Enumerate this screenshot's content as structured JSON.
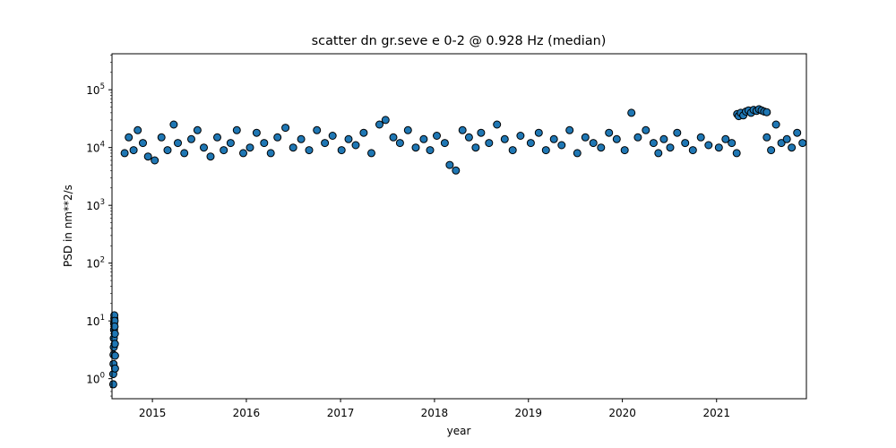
{
  "chart_data": {
    "type": "scatter",
    "title": "scatter dn gr.seve e 0-2 @ 0.928 Hz (median)",
    "xlabel": "year",
    "ylabel": "PSD in nm**2/s",
    "x_scale": "date",
    "y_scale": "log",
    "xlim": [
      "2014-07-28",
      "2021-12-16"
    ],
    "ylim": [
      0.45,
      420000
    ],
    "x_ticks": [
      "2015",
      "2016",
      "2017",
      "2018",
      "2019",
      "2020",
      "2021"
    ],
    "y_ticks": [
      1,
      10,
      100,
      1000,
      10000,
      100000
    ],
    "y_tick_labels": [
      "10^0",
      "10^1",
      "10^2",
      "10^3",
      "10^4",
      "10^5"
    ],
    "grid": false,
    "marker_color": "#1f77b4",
    "marker_edge_color": "#000000",
    "series": [
      {
        "x": [
          "2014-08-02",
          "2014-08-02",
          "2014-08-03",
          "2014-08-03",
          "2014-08-04",
          "2014-08-04",
          "2014-08-05",
          "2014-08-05",
          "2014-08-06",
          "2014-08-06",
          "2014-08-07",
          "2014-08-07",
          "2014-08-08",
          "2014-08-08",
          "2014-08-09",
          "2014-08-09",
          "2014-09-15",
          "2014-10-01",
          "2014-10-20",
          "2014-11-05",
          "2014-11-25",
          "2014-12-15",
          "2015-01-10",
          "2015-02-05",
          "2015-03-01",
          "2015-03-25",
          "2015-04-10",
          "2015-05-05",
          "2015-06-01",
          "2015-06-25",
          "2015-07-20",
          "2015-08-15",
          "2015-09-10",
          "2015-10-05",
          "2015-11-01",
          "2015-11-25",
          "2015-12-20",
          "2016-01-15",
          "2016-02-10",
          "2016-03-10",
          "2016-04-05",
          "2016-05-01",
          "2016-06-01",
          "2016-07-01",
          "2016-08-01",
          "2016-09-01",
          "2016-10-01",
          "2016-11-01",
          "2016-12-01",
          "2017-01-05",
          "2017-02-01",
          "2017-03-01",
          "2017-04-01",
          "2017-05-01",
          "2017-06-01",
          "2017-06-25",
          "2017-07-25",
          "2017-08-20",
          "2017-09-20",
          "2017-10-20",
          "2017-11-20",
          "2017-12-15",
          "2018-01-10",
          "2018-02-10",
          "2018-03-01",
          "2018-03-25",
          "2018-04-20",
          "2018-05-15",
          "2018-06-10",
          "2018-07-01",
          "2018-08-01",
          "2018-09-01",
          "2018-10-01",
          "2018-11-01",
          "2018-12-01",
          "2019-01-10",
          "2019-02-10",
          "2019-03-10",
          "2019-04-10",
          "2019-05-10",
          "2019-06-10",
          "2019-07-10",
          "2019-08-10",
          "2019-09-10",
          "2019-10-10",
          "2019-11-10",
          "2019-12-10",
          "2020-01-10",
          "2020-02-05",
          "2020-03-01",
          "2020-04-01",
          "2020-05-01",
          "2020-05-20",
          "2020-06-10",
          "2020-07-05",
          "2020-08-01",
          "2020-09-01",
          "2020-10-01",
          "2020-11-01",
          "2020-12-01",
          "2021-01-10",
          "2021-02-05",
          "2021-03-01",
          "2021-03-20",
          "2021-03-22",
          "2021-03-28",
          "2021-04-05",
          "2021-04-15",
          "2021-04-25",
          "2021-05-05",
          "2021-05-15",
          "2021-05-25",
          "2021-06-05",
          "2021-06-15",
          "2021-06-25",
          "2021-07-05",
          "2021-07-15",
          "2021-07-15",
          "2021-08-01",
          "2021-08-20",
          "2021-09-10",
          "2021-10-01",
          "2021-10-20",
          "2021-11-10",
          "2021-12-01"
        ],
        "y": [
          0.8,
          1.2,
          1.8,
          2.6,
          3.5,
          5,
          7,
          9,
          11,
          12.5,
          10,
          8,
          6,
          4,
          2.5,
          1.5,
          8000,
          15000,
          9000,
          20000,
          12000,
          7000,
          6000,
          15000,
          9000,
          25000,
          12000,
          8000,
          14000,
          20000,
          10000,
          7000,
          15000,
          9000,
          12000,
          20000,
          8000,
          10000,
          18000,
          12000,
          8000,
          15000,
          22000,
          10000,
          14000,
          9000,
          20000,
          12000,
          16000,
          9000,
          14000,
          11000,
          18000,
          8000,
          25000,
          30000,
          15000,
          12000,
          20000,
          10000,
          14000,
          9000,
          16000,
          12000,
          5000,
          4000,
          20000,
          15000,
          10000,
          18000,
          12000,
          25000,
          14000,
          9000,
          16000,
          12000,
          18000,
          9000,
          14000,
          11000,
          20000,
          8000,
          15000,
          12000,
          10000,
          18000,
          14000,
          9000,
          40000,
          15000,
          20000,
          12000,
          8000,
          14000,
          10000,
          18000,
          12000,
          9000,
          15000,
          11000,
          10000,
          14000,
          12000,
          8000,
          38000,
          35000,
          40000,
          36000,
          42000,
          44000,
          40000,
          45000,
          43000,
          46000,
          44000,
          42000,
          41000,
          15000,
          9000,
          25000,
          12000,
          14000,
          10000,
          18000,
          12000
        ]
      }
    ]
  }
}
